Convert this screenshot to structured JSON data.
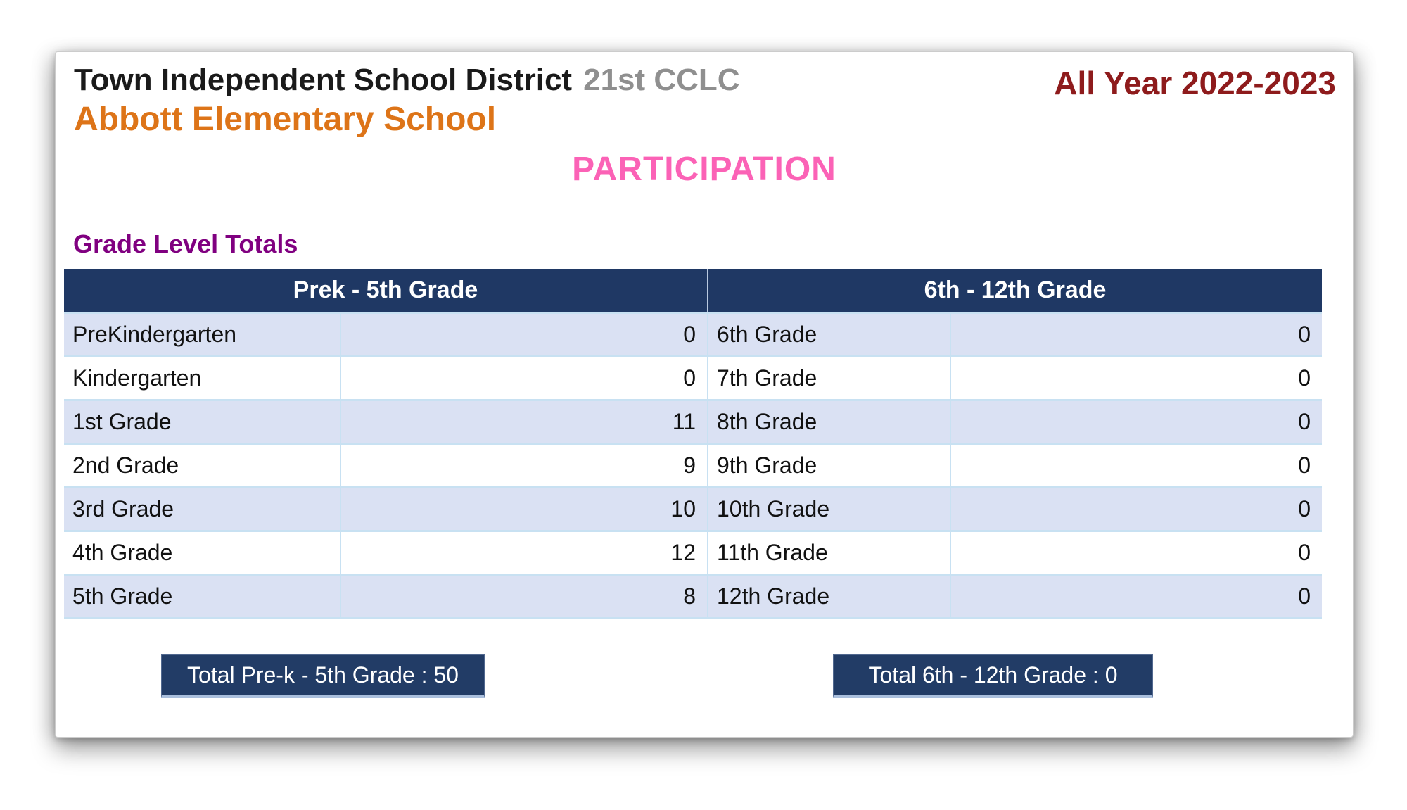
{
  "header": {
    "district": "Town Independent School District",
    "program": "21st CCLC",
    "school": "Abbott Elementary School",
    "period": "All Year 2022-2023"
  },
  "page_title": "PARTICIPATION",
  "section_title": "Grade Level Totals",
  "colors": {
    "header_navy": "#1f3864",
    "total_button_navy": "#223c66",
    "row_alternate_blue": "#dae1f3",
    "gridline_blue": "#c8e1f2",
    "school_orange": "#dd7418",
    "period_maroon": "#8e1b1c",
    "participation_pink": "#fb62b6",
    "section_purple": "#800080",
    "program_gray": "#8f8f8f"
  },
  "chart_data": {
    "type": "table",
    "title": "Grade Level Totals",
    "sections": [
      {
        "header": "Prek - 5th Grade",
        "rows": [
          [
            "PreKindergarten",
            0
          ],
          [
            "Kindergarten",
            0
          ],
          [
            "1st Grade",
            11
          ],
          [
            "2nd Grade",
            9
          ],
          [
            "3rd Grade",
            10
          ],
          [
            "4th Grade",
            12
          ],
          [
            "5th Grade",
            8
          ]
        ],
        "total": 50,
        "total_label": "Total Pre-k - 5th Grade : 50"
      },
      {
        "header": "6th - 12th Grade",
        "rows": [
          [
            "6th Grade",
            0
          ],
          [
            "7th Grade",
            0
          ],
          [
            "8th Grade",
            0
          ],
          [
            "9th Grade",
            0
          ],
          [
            "10th Grade",
            0
          ],
          [
            "11th Grade",
            0
          ],
          [
            "12th Grade",
            0
          ]
        ],
        "total": 0,
        "total_label": "Total 6th - 12th Grade : 0"
      }
    ]
  }
}
